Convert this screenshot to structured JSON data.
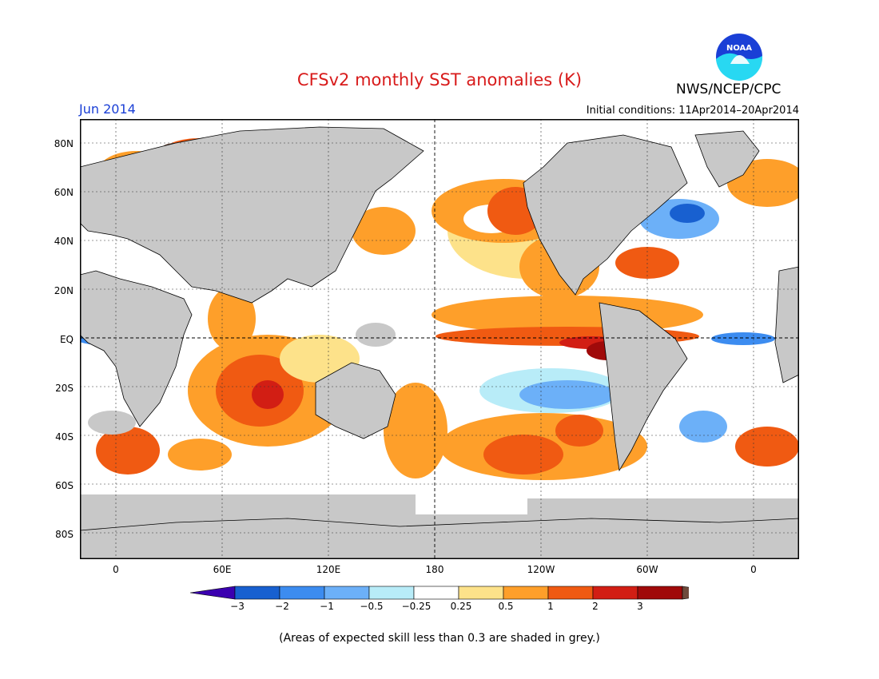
{
  "header": {
    "title": "CFSv2 monthly SST anomalies (K)",
    "month": "Jun 2014",
    "initial_conditions": "Initial conditions: 11Apr2014–20Apr2014",
    "agency": "NWS/NCEP/CPC",
    "logo_text": "NOAA"
  },
  "map": {
    "lat_labels": [
      "80N",
      "60N",
      "40N",
      "20N",
      "EQ",
      "20S",
      "40S",
      "60S",
      "80S"
    ],
    "lon_labels": [
      "0",
      "60E",
      "120E",
      "180",
      "120W",
      "60W",
      "0"
    ],
    "land_color": "#c8c8c8",
    "ocean_neutral": "#ffffff"
  },
  "colorbar": {
    "tick_labels": [
      "−3",
      "−2",
      "−1",
      "−0.5",
      "−0.25",
      "0.25",
      "0.5",
      "1",
      "2",
      "3"
    ],
    "colors": [
      "#3b00b0",
      "#1860d0",
      "#3c8cf0",
      "#6cb0f8",
      "#b8ecf8",
      "#ffffff",
      "#fde28a",
      "#fe9f2a",
      "#f05a12",
      "#d21e14",
      "#a00a0a",
      "#6e4a3c"
    ]
  },
  "footer": {
    "note": "(Areas of expected skill less than 0.3 are shaded in grey.)"
  }
}
